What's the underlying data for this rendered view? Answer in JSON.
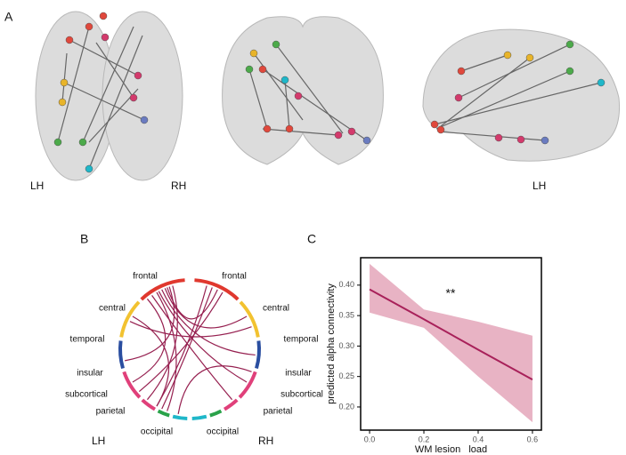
{
  "panel_labels": [
    "A",
    "B",
    "C"
  ],
  "brain": {
    "labels": [
      "LH",
      "RH",
      "LH"
    ]
  },
  "circos": {
    "left_regions": [
      "frontal",
      "central",
      "temporal",
      "insular",
      "subcortical",
      "parietal",
      "occipital"
    ],
    "right_regions": [
      "frontal",
      "central",
      "temporal",
      "insular",
      "subcortical",
      "parietal",
      "occipital"
    ],
    "hemispheres": [
      "LH",
      "RH"
    ]
  },
  "chart_data": {
    "type": "line",
    "x": [
      0,
      0.2,
      0.4,
      0.6
    ],
    "values": [
      0.393,
      0.344,
      0.294,
      0.245
    ],
    "ci_upper": [
      0.435,
      0.36,
      0.34,
      0.317
    ],
    "ci_lower": [
      0.355,
      0.33,
      0.25,
      0.175
    ],
    "color": "#a8215a",
    "band_color": "#e8b3c4",
    "xlim": [
      -0.033,
      0.633
    ],
    "xticks": [
      {
        "value": 0,
        "label": "0.0"
      },
      0.2,
      0.4,
      0.6
    ],
    "ylim": [
      0.162,
      0.445
    ],
    "yticks": [
      {
        "value": 0.2,
        "label": "0.20"
      },
      {
        "value": 0.25,
        "label": "0.25"
      },
      {
        "value": 0.3,
        "label": "0.30"
      },
      {
        "value": 0.35,
        "label": "0.35"
      },
      {
        "value": 0.4,
        "label": "0.40"
      }
    ],
    "x_label": "WM lesion   load",
    "y_label": "predicted alpha connectivity",
    "annotation": "**"
  }
}
